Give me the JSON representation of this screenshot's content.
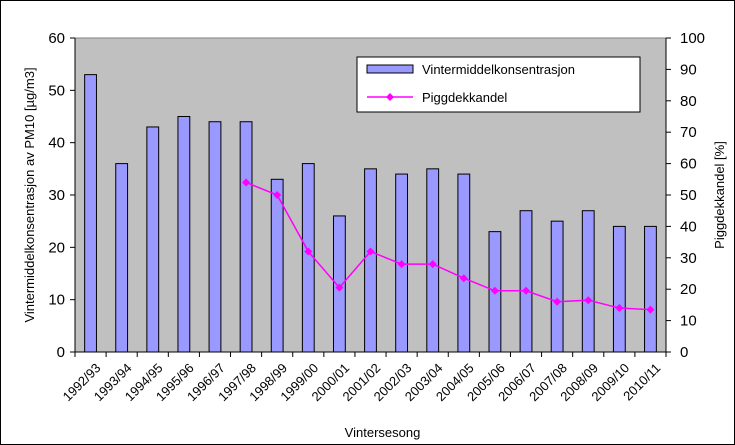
{
  "chart_data": {
    "type": "bar",
    "categories": [
      "1992/93",
      "1993/94",
      "1994/95",
      "1995/96",
      "1996/97",
      "1997/98",
      "1998/99",
      "1999/00",
      "2000/01",
      "2001/02",
      "2002/03",
      "2003/04",
      "2004/05",
      "2005/06",
      "2006/07",
      "2007/08",
      "2008/09",
      "2009/10",
      "2010/11"
    ],
    "series": [
      {
        "name": "Vintermiddelkonsentrasjon",
        "type": "bar",
        "axis": "left",
        "color": "#9999ff",
        "values": [
          53,
          36,
          43,
          45,
          44,
          44,
          33,
          36,
          26,
          35,
          34,
          35,
          34,
          23,
          27,
          25,
          27,
          24,
          24
        ]
      },
      {
        "name": "Piggdekkandel",
        "type": "line",
        "axis": "right",
        "color": "#ff00ff",
        "values": [
          null,
          null,
          null,
          null,
          null,
          54,
          50,
          32,
          20.5,
          32,
          28,
          28,
          23.5,
          19.5,
          19.5,
          16,
          16.5,
          14,
          13.5
        ]
      }
    ],
    "xlabel": "Vintersesong",
    "ylabel": "Vintermiddelkonsentrasjon av PM10 [µg/m3]",
    "y2label": "Piggdekkandel [%]",
    "ylim": [
      0,
      60
    ],
    "y2lim": [
      0,
      100
    ],
    "yticks": [
      "0",
      "10",
      "20",
      "30",
      "40",
      "50",
      "60"
    ],
    "y2ticks": [
      "0",
      "10",
      "20",
      "30",
      "40",
      "50",
      "60",
      "70",
      "80",
      "90",
      "100"
    ],
    "plot_background": "#c0c0c0",
    "grid": false,
    "legend_position": "top-right"
  }
}
